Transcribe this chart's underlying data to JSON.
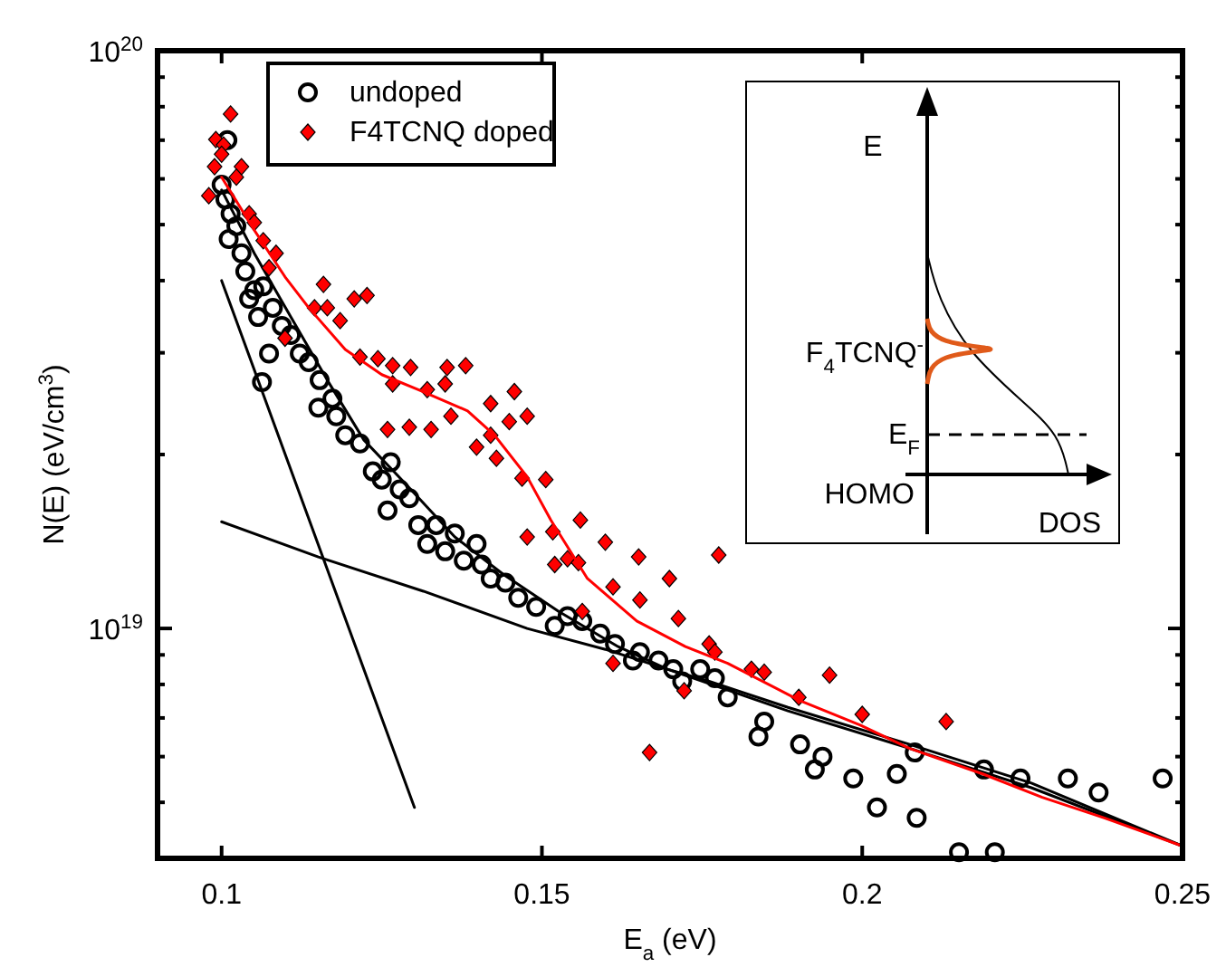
{
  "chart_data": {
    "type": "scatter",
    "xlabel": "E$_{a}$ (eV)",
    "ylabel": "N(E) (eV/cm$^{3}$)",
    "xlim": [
      0.09,
      0.25
    ],
    "xticks": [
      0.1,
      0.15,
      0.2,
      0.25
    ],
    "ylim": [
      4e+18,
      1e+20
    ],
    "log": true,
    "yticks": [
      {
        "value": 4e+18,
        "label": null
      },
      {
        "value": 5e+18,
        "label": null
      },
      {
        "value": 6e+18,
        "label": null
      },
      {
        "value": 7e+18,
        "label": null
      },
      {
        "value": 8e+18,
        "label": null
      },
      {
        "value": 9e+18,
        "label": null
      },
      {
        "value": 1e+19,
        "label": "10$^{19}$"
      },
      {
        "value": 2e+19,
        "label": null
      },
      {
        "value": 3e+19,
        "label": null
      },
      {
        "value": 4e+19,
        "label": null
      },
      {
        "value": 5e+19,
        "label": null
      },
      {
        "value": 6e+19,
        "label": null
      },
      {
        "value": 7e+19,
        "label": null
      },
      {
        "value": 8e+19,
        "label": null
      },
      {
        "value": 9e+19,
        "label": null
      },
      {
        "value": 1e+20,
        "label": "10$^{20}$"
      }
    ],
    "legend": "top left",
    "annotations": [
      "E",
      "F$_{4}$TCNQ$^{-}$",
      "E$_{F}$",
      "HOMO",
      "DOS"
    ],
    "series": [
      {
        "type": "line",
        "color": "#000000",
        "x": [
          0.1,
          0.1301
        ],
        "values": [
          4e+19,
          4.9e+18
        ]
      },
      {
        "type": "line",
        "color": "#000000",
        "x": [
          0.1,
          0.1151,
          0.1315,
          0.1477,
          0.1599,
          0.1696,
          0.1884,
          0.2074,
          0.2264,
          0.25
        ],
        "values": [
          1.53e+19,
          1.33e+19,
          1.16e+19,
          1e+19,
          9.2e+18,
          8.5e+18,
          7.2e+18,
          6.2e+18,
          5.3e+18,
          4.2e+18
        ]
      },
      {
        "type": "line",
        "color": "#000000",
        "x": [
          0.1,
          0.1051,
          0.1108,
          0.1165,
          0.1222,
          0.1287,
          0.1364,
          0.144,
          0.1526,
          0.1619,
          0.1696,
          0.1761,
          0.1884,
          0.2074,
          0.2264,
          0.25
        ],
        "values": [
          5.74e+19,
          4.46e+19,
          3.46e+19,
          2.69e+19,
          2.12e+19,
          1.78e+19,
          1.44e+19,
          1.24e+19,
          1.07e+19,
          9.3e+18,
          8.5e+18,
          8.1e+18,
          7.3e+18,
          6.3e+18,
          5.4e+18,
          4.2e+18
        ]
      },
      {
        "name": "undoped",
        "color": "#000000",
        "marker": "circle",
        "x": [
          0.1009,
          0.1,
          0.1006,
          0.1014,
          0.1011,
          0.1023,
          0.1031,
          0.1037,
          0.1051,
          0.1043,
          0.1065,
          0.108,
          0.1057,
          0.1094,
          0.1108,
          0.1074,
          0.1122,
          0.1136,
          0.1063,
          0.1153,
          0.1151,
          0.1173,
          0.1179,
          0.1193,
          0.1216,
          0.1236,
          0.125,
          0.1264,
          0.1278,
          0.1259,
          0.1293,
          0.1307,
          0.1321,
          0.1335,
          0.1364,
          0.1349,
          0.1378,
          0.1398,
          0.1406,
          0.142,
          0.1443,
          0.1463,
          0.1491,
          0.152,
          0.154,
          0.1563,
          0.1591,
          0.1614,
          0.1642,
          0.1653,
          0.1682,
          0.1705,
          0.1719,
          0.1747,
          0.177,
          0.179,
          0.1838,
          0.1847,
          0.1903,
          0.1926,
          0.1938,
          0.1986,
          0.2023,
          0.2054,
          0.2082,
          0.2085,
          0.2151,
          0.219,
          0.2207,
          0.2247,
          0.2321,
          0.2369,
          0.2469
        ],
        "values": [
          7e+19,
          5.86e+19,
          5.53e+19,
          5.22e+19,
          4.72e+19,
          4.97e+19,
          4.46e+19,
          4.15e+19,
          3.85e+19,
          3.72e+19,
          3.91e+19,
          3.59e+19,
          3.46e+19,
          3.34e+19,
          3.22e+19,
          2.99e+19,
          2.99e+19,
          2.89e+19,
          2.67e+19,
          2.69e+19,
          2.41e+19,
          2.5e+19,
          2.33e+19,
          2.16e+19,
          2.09e+19,
          1.87e+19,
          1.81e+19,
          1.94e+19,
          1.74e+19,
          1.6e+19,
          1.68e+19,
          1.51e+19,
          1.4e+19,
          1.51e+19,
          1.46e+19,
          1.36e+19,
          1.31e+19,
          1.4e+19,
          1.29e+19,
          1.22e+19,
          1.2e+19,
          1.13e+19,
          1.09e+19,
          1.01e+19,
          1.05e+19,
          1.03e+19,
          9.8e+18,
          9.4e+18,
          8.8e+18,
          9.1e+18,
          8.8e+18,
          8.5e+18,
          8.1e+18,
          8.5e+18,
          8.2e+18,
          7.6e+18,
          6.5e+18,
          6.9e+18,
          6.3e+18,
          5.7e+18,
          6e+18,
          5.5e+18,
          4.9e+18,
          5.6e+18,
          6.1e+18,
          4.7e+18,
          4.1e+18,
          5.7e+18,
          4.1e+18,
          5.5e+18,
          5.5e+18,
          5.2e+18,
          5.5e+18
        ]
      },
      {
        "name": "F4TCNQ doped",
        "color": "#ff0000",
        "marker": "diamond",
        "x": [
          0.1014,
          0.0991,
          0.1003,
          0.1,
          0.0989,
          0.1031,
          0.1023,
          0.098,
          0.1043,
          0.1051,
          0.1065,
          0.1085,
          0.1074,
          0.1159,
          0.1227,
          0.1207,
          0.1145,
          0.1165,
          0.1185,
          0.1099,
          0.1216,
          0.1244,
          0.1267,
          0.1295,
          0.1352,
          0.1381,
          0.1267,
          0.1321,
          0.1349,
          0.1457,
          0.142,
          0.1358,
          0.1477,
          0.1449,
          0.1259,
          0.1293,
          0.1327,
          0.142,
          0.1398,
          0.1429,
          0.1469,
          0.1506,
          0.156,
          0.1477,
          0.1517,
          0.1599,
          0.152,
          0.154,
          0.1557,
          0.1651,
          0.1776,
          0.1699,
          0.1611,
          0.1653,
          0.1713,
          0.1563,
          0.1761,
          0.177,
          0.1611,
          0.1722,
          0.1827,
          0.1847,
          0.1949,
          0.1901,
          0.2,
          0.2131,
          0.1668
        ],
        "values": [
          7.77e+19,
          7.02e+19,
          6.87e+19,
          6.62e+19,
          6.3e+19,
          6.3e+19,
          6.04e+19,
          5.61e+19,
          5.22e+19,
          5.04e+19,
          4.69e+19,
          4.46e+19,
          4.21e+19,
          3.94e+19,
          3.77e+19,
          3.72e+19,
          3.59e+19,
          3.59e+19,
          3.41e+19,
          3.18e+19,
          2.95e+19,
          2.93e+19,
          2.85e+19,
          2.83e+19,
          2.83e+19,
          2.85e+19,
          2.65e+19,
          2.59e+19,
          2.65e+19,
          2.57e+19,
          2.45e+19,
          2.33e+19,
          2.33e+19,
          2.28e+19,
          2.21e+19,
          2.23e+19,
          2.21e+19,
          2.16e+19,
          2.06e+19,
          1.97e+19,
          1.82e+19,
          1.81e+19,
          1.54e+19,
          1.44e+19,
          1.47e+19,
          1.41e+19,
          1.29e+19,
          1.32e+19,
          1.3e+19,
          1.33e+19,
          1.34e+19,
          1.22e+19,
          1.18e+19,
          1.12e+19,
          1.04e+19,
          1.07e+19,
          9.4e+18,
          9.1e+18,
          8.7e+18,
          7.8e+18,
          8.5e+18,
          8.4e+18,
          8.3e+18,
          7.6e+18,
          7.1e+18,
          6.9e+18,
          6.1e+18
        ]
      },
      {
        "type": "line",
        "color": "#ff0000",
        "x": [
          0.1,
          0.1051,
          0.1099,
          0.1136,
          0.1193,
          0.125,
          0.1307,
          0.1384,
          0.1426,
          0.1477,
          0.1514,
          0.1571,
          0.1648,
          0.1724,
          0.179,
          0.1903,
          0.1997,
          0.2074,
          0.2188,
          0.2281,
          0.2378,
          0.25
        ],
        "values": [
          6.04e+19,
          4.89e+19,
          4.06e+19,
          3.59e+19,
          3.04e+19,
          2.75e+19,
          2.59e+19,
          2.38e+19,
          2.16e+19,
          1.83e+19,
          1.54e+19,
          1.22e+19,
          1.03e+19,
          9.3e+18,
          8.7e+18,
          7.5e+18,
          6.8e+18,
          6.2e+18,
          5.6e+18,
          5.1e+18,
          4.7e+18,
          4.2e+18
        ]
      }
    ]
  }
}
